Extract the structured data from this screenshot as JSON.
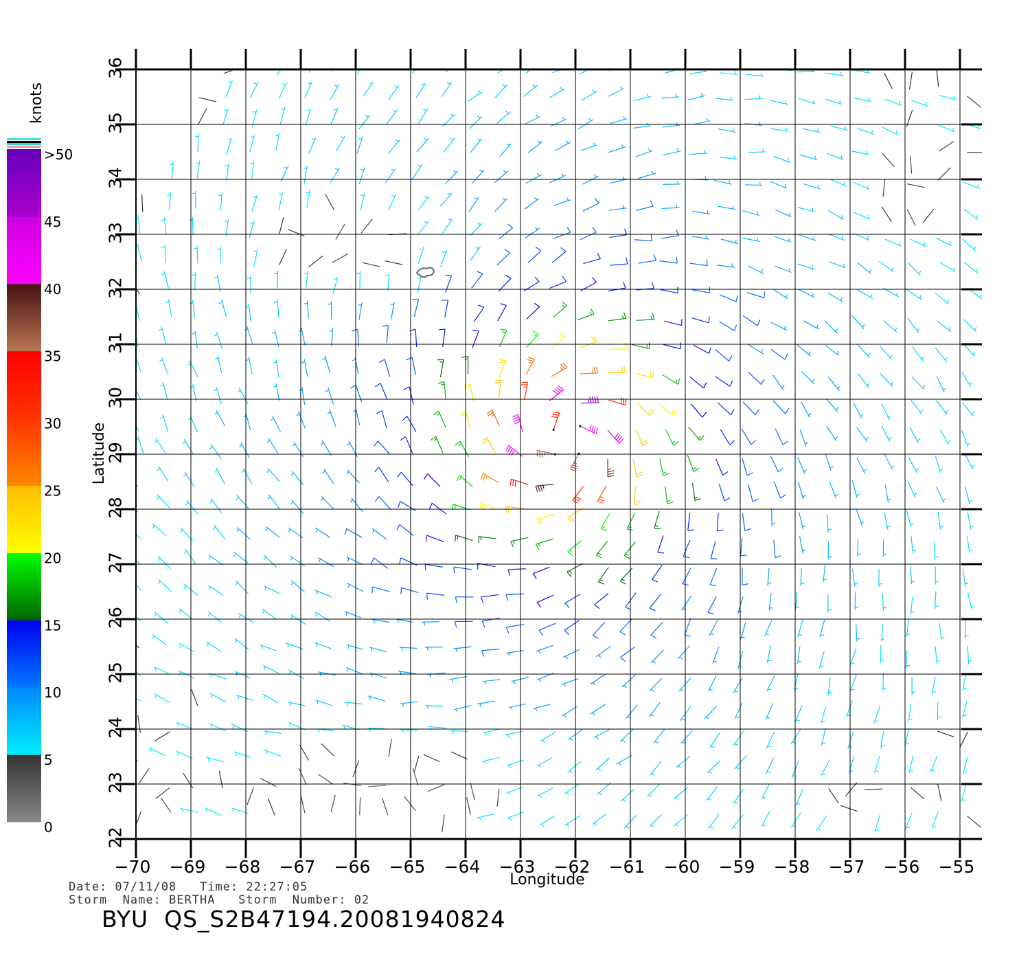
{
  "chart_data": {
    "type": "wind-barb field",
    "xlabel": "Longitude",
    "ylabel": "Latitude",
    "xlim": [
      -70,
      -54.6
    ],
    "ylim": [
      22,
      36
    ],
    "x_ticks": [
      -70,
      -69,
      -68,
      -67,
      -66,
      -65,
      -64,
      -63,
      -62,
      -61,
      -60,
      -59,
      -58,
      -57,
      -56,
      -55
    ],
    "x_tick_labels": [
      "−70",
      "−69",
      "−68",
      "−67",
      "−66",
      "−65",
      "−64",
      "−63",
      "−62",
      "−61",
      "−60",
      "−59",
      "−58",
      "−57",
      "−56",
      "−55"
    ],
    "y_ticks": [
      22,
      23,
      24,
      25,
      26,
      27,
      28,
      29,
      30,
      31,
      32,
      33,
      34,
      35,
      36
    ],
    "y_tick_labels": [
      "22",
      "23",
      "24",
      "25",
      "26",
      "27",
      "28",
      "29",
      "30",
      "31",
      "32",
      "33",
      "34",
      "35",
      "36"
    ],
    "grid": true,
    "storm_center": {
      "lon": -62.2,
      "lat": 29.3
    },
    "speed_units": "knots",
    "colorbar": {
      "title": "knots",
      "labels": [
        ">50",
        "45",
        "40",
        "35",
        "30",
        "25",
        "20",
        "15",
        "10",
        "5",
        "0"
      ],
      "bands": [
        {
          "from": 0,
          "to": 5,
          "colors": [
            "#888888",
            "#333333"
          ]
        },
        {
          "from": 5,
          "to": 10,
          "colors": [
            "#00eeff",
            "#0088ff"
          ]
        },
        {
          "from": 10,
          "to": 15,
          "colors": [
            "#0077ff",
            "#0000ee"
          ]
        },
        {
          "from": 15,
          "to": 20,
          "colors": [
            "#006600",
            "#00ff00"
          ]
        },
        {
          "from": 20,
          "to": 25,
          "colors": [
            "#ffff00",
            "#ffbb00"
          ]
        },
        {
          "from": 25,
          "to": 30,
          "colors": [
            "#ff8800",
            "#ff3300"
          ]
        },
        {
          "from": 30,
          "to": 35,
          "colors": [
            "#ff3300",
            "#ff0000"
          ]
        },
        {
          "from": 35,
          "to": 40,
          "colors": [
            "#bb7755",
            "#441111"
          ]
        },
        {
          "from": 40,
          "to": 45,
          "colors": [
            "#ff00ff",
            "#cc00dd"
          ]
        },
        {
          "from": 45,
          "to": 50,
          "colors": [
            "#aa00cc",
            "#6600bb"
          ]
        }
      ]
    }
  },
  "footer": {
    "date_line": "Date: 07/11/08   Time: 22:27:05",
    "storm_line": "Storm  Name: BERTHA   Storm  Number: 02",
    "id_line": "BYU  QS_S2B47194.20081940824"
  }
}
